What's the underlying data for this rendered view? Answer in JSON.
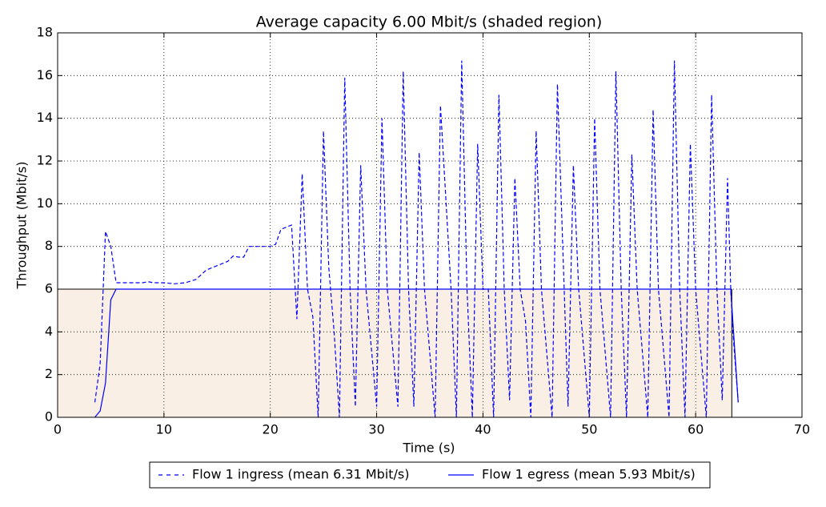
{
  "chart_data": {
    "type": "line",
    "title": "Average capacity 6.00 Mbit/s (shaded region)",
    "x_label": "Time (s)",
    "y_label": "Throughput (Mbit/s)",
    "xlim": [
      0,
      70
    ],
    "xticks": [
      0,
      10,
      20,
      30,
      40,
      50,
      60,
      70
    ],
    "ylim": [
      0,
      18
    ],
    "yticks": [
      0,
      2,
      4,
      6,
      8,
      10,
      12,
      14,
      16,
      18
    ],
    "grid": true,
    "legend": "below",
    "shaded": {
      "x": [
        0,
        63.4
      ],
      "value": 6,
      "color": "#faefe5"
    },
    "series": [
      {
        "name": "Flow 1 ingress (mean 6.31 Mbit/s)",
        "color": "#0000ff",
        "dash": true,
        "x": [
          3.5,
          4,
          4.5,
          5,
          5.5,
          6,
          7,
          8,
          8.5,
          9,
          10,
          11,
          12,
          13,
          14,
          15,
          16,
          16.5,
          17,
          17.5,
          18,
          19,
          20,
          20.5,
          21,
          22,
          22.5,
          23,
          23.5,
          24,
          24.5,
          25,
          25.5,
          26,
          26.5,
          27,
          27.5,
          28,
          28.5,
          29,
          30,
          30.5,
          31,
          32,
          32.5,
          33,
          33.5,
          34,
          34.5,
          35.5,
          36,
          37,
          37.5,
          38,
          38.5,
          39,
          39.5,
          40,
          40.5,
          41,
          41.5,
          42,
          42.5,
          43,
          43.5,
          44,
          44.5,
          45,
          45.5,
          46.5,
          47,
          48,
          48.5,
          49,
          50,
          50.5,
          51,
          52,
          52.5,
          53,
          53.5,
          54,
          54.5,
          55.5,
          56,
          56.5,
          57.5,
          58,
          58.5,
          59,
          59.5,
          60,
          61,
          61.5,
          62,
          62.5,
          63,
          63.3,
          63.5,
          64
        ],
        "values": [
          0.7,
          2.5,
          8.7,
          8,
          6.3,
          6.3,
          6.3,
          6.3,
          6.35,
          6.3,
          6.3,
          6.25,
          6.3,
          6.45,
          6.9,
          7.1,
          7.3,
          7.55,
          7.5,
          7.5,
          8,
          8,
          8,
          8.1,
          8.8,
          9,
          4.6,
          11.4,
          6,
          4.7,
          0,
          13.4,
          7,
          4,
          0,
          15.9,
          6,
          0.5,
          11.8,
          6,
          0.5,
          14,
          6,
          0.5,
          16.2,
          6,
          0.5,
          12.4,
          6,
          0,
          14.6,
          6,
          0,
          16.7,
          6,
          0,
          12.8,
          6,
          6,
          0,
          15.1,
          6,
          0.8,
          11.2,
          6,
          4.5,
          0,
          13.4,
          6,
          0,
          15.6,
          0.5,
          11.8,
          6,
          0,
          14,
          6,
          0,
          16.2,
          6,
          0,
          12.3,
          6,
          0,
          14.4,
          6,
          0,
          16.7,
          6,
          0,
          12.8,
          6,
          0,
          15.1,
          6,
          0.8,
          11.2,
          6,
          4,
          0.7
        ]
      },
      {
        "name": "Flow 1 egress (mean 5.93 Mbit/s)",
        "color": "#0000ff",
        "dash": false,
        "x": [
          3.5,
          4,
          4.5,
          5,
          5.5,
          6,
          10,
          14,
          20,
          30,
          40,
          50,
          60,
          62.8,
          63.3,
          64
        ],
        "values": [
          0,
          0.3,
          1.6,
          5.5,
          6,
          6,
          6,
          6,
          6,
          6,
          6,
          6,
          6,
          6,
          6,
          0.7
        ]
      }
    ]
  }
}
